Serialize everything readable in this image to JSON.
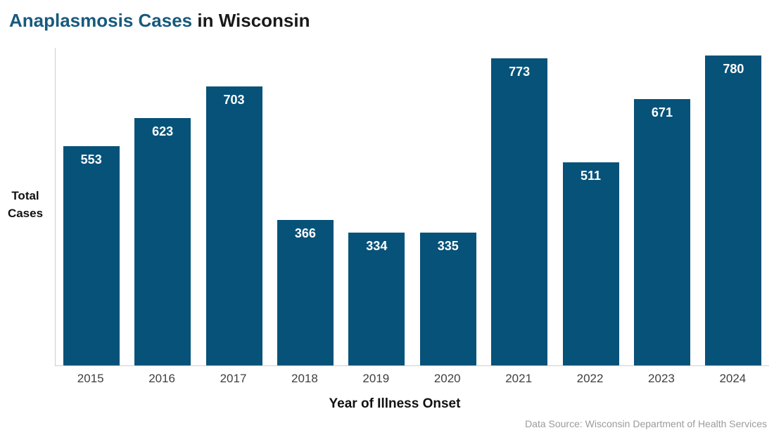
{
  "title": {
    "accent_text": "Anaplasmosis Cases",
    "rest_text": " in Wisconsin"
  },
  "y_axis": {
    "label_line1": "Total",
    "label_line2": "Cases"
  },
  "x_axis": {
    "title": "Year of Illness Onset"
  },
  "source": "Data Source: Wisconsin Department of Health Services",
  "colors": {
    "bar": "#065279",
    "title_accent": "#175a7e",
    "axis_line": "#cfcfcf",
    "tick_label": "#3f3f3f",
    "value_label": "#ffffff",
    "source_text": "#9b9b9b"
  },
  "chart_data": {
    "type": "bar",
    "title": "Anaplasmosis Cases in Wisconsin",
    "categories": [
      "2015",
      "2016",
      "2017",
      "2018",
      "2019",
      "2020",
      "2021",
      "2022",
      "2023",
      "2024"
    ],
    "values": [
      553,
      623,
      703,
      366,
      334,
      335,
      773,
      511,
      671,
      780
    ],
    "xlabel": "Year of Illness Onset",
    "ylabel": "Total Cases",
    "ylim": [
      0,
      800
    ],
    "grid": false,
    "legend": "none",
    "data_labels": "inside-top-white-bold",
    "bar_color": "#065279"
  }
}
